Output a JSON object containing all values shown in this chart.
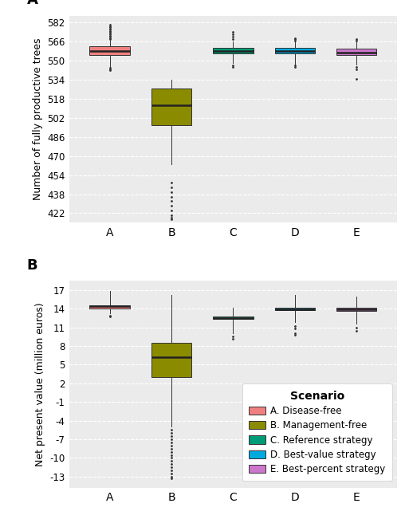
{
  "panel_A": {
    "label": "A",
    "ylabel": "Number of fully productive trees",
    "yticks": [
      422,
      438,
      454,
      470,
      486,
      502,
      518,
      534,
      550,
      566,
      582
    ],
    "ylim": [
      414,
      588
    ],
    "boxes": [
      {
        "scenario": "A",
        "color": "#F08080",
        "whisker_lo": 545,
        "q1": 555,
        "median": 558,
        "q3": 562,
        "whisker_hi": 567,
        "fliers_hi": [
          568,
          569,
          570,
          571,
          572,
          573,
          574,
          575,
          576,
          577,
          578,
          579,
          580
        ],
        "fliers_lo": [
          544,
          543,
          542
        ]
      },
      {
        "scenario": "B",
        "color": "#8B8B00",
        "whisker_lo": 463,
        "q1": 496,
        "median": 513,
        "q3": 527,
        "whisker_hi": 534,
        "fliers_hi": [],
        "fliers_lo": [
          448,
          444,
          440,
          436,
          432,
          428,
          424,
          420,
          418,
          417
        ]
      },
      {
        "scenario": "C",
        "color": "#009B77",
        "whisker_lo": 548,
        "q1": 556,
        "median": 558,
        "q3": 561,
        "whisker_hi": 566,
        "fliers_hi": [
          568,
          570,
          572,
          574
        ],
        "fliers_lo": [
          546,
          545
        ]
      },
      {
        "scenario": "D",
        "color": "#00AADD",
        "whisker_lo": 547,
        "q1": 556,
        "median": 558,
        "q3": 561,
        "whisker_hi": 566,
        "fliers_hi": [
          567,
          568,
          569
        ],
        "fliers_lo": [
          546,
          545
        ]
      },
      {
        "scenario": "E",
        "color": "#CC77CC",
        "whisker_lo": 547,
        "q1": 555,
        "median": 557,
        "q3": 560,
        "whisker_hi": 566,
        "fliers_hi": [
          567,
          568
        ],
        "fliers_lo": [
          545,
          543,
          535
        ]
      }
    ]
  },
  "panel_B": {
    "label": "B",
    "ylabel": "Net present value (million euros)",
    "yticks": [
      -13,
      -10,
      -7,
      -4,
      -1,
      2,
      5,
      8,
      11,
      14,
      17
    ],
    "ylim": [
      -14.8,
      18.5
    ],
    "boxes": [
      {
        "scenario": "A",
        "color": "#F08080",
        "whisker_lo": 13.2,
        "q1": 14.05,
        "median": 14.35,
        "q3": 14.6,
        "whisker_hi": 16.8,
        "fliers_hi": [],
        "fliers_lo": [
          12.9,
          12.8
        ]
      },
      {
        "scenario": "B",
        "color": "#8B8B00",
        "whisker_lo": -5.0,
        "q1": 3.0,
        "median": 6.2,
        "q3": 8.5,
        "whisker_hi": 16.2,
        "fliers_hi": [],
        "fliers_lo": [
          -5.5,
          -6.0,
          -6.5,
          -7.0,
          -7.5,
          -8.0,
          -8.5,
          -9.0,
          -9.5,
          -10.0,
          -10.5,
          -11.0,
          -11.5,
          -12.0,
          -12.5,
          -13.0,
          -13.3
        ]
      },
      {
        "scenario": "C",
        "color": "#009B77",
        "whisker_lo": 10.0,
        "q1": 12.3,
        "median": 12.55,
        "q3": 12.75,
        "whisker_hi": 14.2,
        "fliers_hi": [],
        "fliers_lo": [
          9.5,
          9.2
        ]
      },
      {
        "scenario": "D",
        "color": "#00AADD",
        "whisker_lo": 11.8,
        "q1": 13.75,
        "median": 13.9,
        "q3": 14.1,
        "whisker_hi": 16.2,
        "fliers_hi": [],
        "fliers_lo": [
          11.2,
          10.8,
          10.0,
          9.8
        ]
      },
      {
        "scenario": "E",
        "color": "#CC77CC",
        "whisker_lo": 11.6,
        "q1": 13.7,
        "median": 13.9,
        "q3": 14.1,
        "whisker_hi": 15.9,
        "fliers_hi": [],
        "fliers_lo": [
          11.0,
          10.5
        ]
      }
    ]
  },
  "legend": {
    "title": "Scenario",
    "entries": [
      {
        "label": "A. Disease-free",
        "color": "#F08080"
      },
      {
        "label": "B. Management-free",
        "color": "#8B8B00"
      },
      {
        "label": "C. Reference strategy",
        "color": "#009B77"
      },
      {
        "label": "D. Best-value strategy",
        "color": "#00AADD"
      },
      {
        "label": "E. Best-percent strategy",
        "color": "#CC77CC"
      }
    ]
  },
  "bg_color": "#EBEBEB",
  "grid_color": "#FFFFFF",
  "box_width": 0.65
}
